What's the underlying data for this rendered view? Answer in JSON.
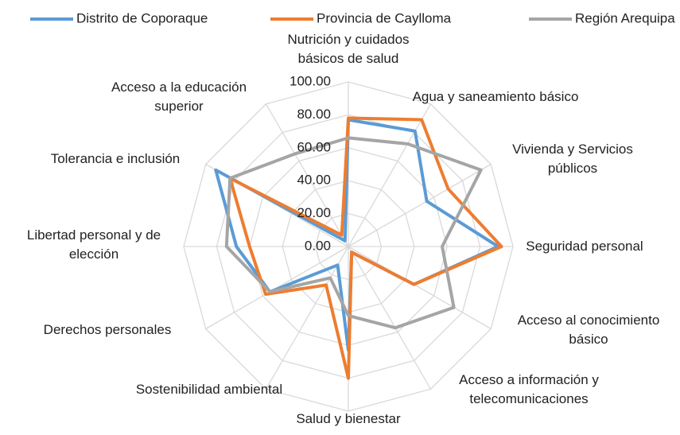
{
  "chart_data": {
    "type": "radar",
    "categories": [
      "Nutrición y cuidados básicos de salud",
      "Agua y saneamiento básico",
      "Vivienda y Servicios públicos",
      "Seguridad personal",
      "Acceso al conocimiento básico",
      "Acceso a información y telecomunicaciones",
      "Salud y bienestar",
      "Sostenibilidad ambiental",
      "Derechos personales",
      "Libertad personal y de elección",
      "Tolerancia e inclusión",
      "Acceso a la educación superior"
    ],
    "series": [
      {
        "name": "Distrito de Coporaque",
        "color": "#5b9bd5",
        "values": [
          77,
          81,
          55,
          91,
          46,
          4,
          63,
          13,
          55,
          68,
          93,
          4
        ]
      },
      {
        "name": "Provincia de Caylloma",
        "color": "#ed7d31",
        "values": [
          78,
          89,
          70,
          93,
          46,
          4,
          80,
          27,
          58,
          60,
          83,
          8
        ]
      },
      {
        "name": "Región Arequipa",
        "color": "#a5a5a5",
        "values": [
          66,
          72,
          93,
          57,
          74,
          57,
          42,
          22,
          55,
          74,
          83,
          65
        ]
      }
    ],
    "ylim": [
      0,
      100
    ],
    "yticks": [
      {
        "value": 0,
        "label": "0.00"
      },
      {
        "value": 20,
        "label": "20.00"
      },
      {
        "value": 40,
        "label": "40.00"
      },
      {
        "value": 60,
        "label": "60.00"
      },
      {
        "value": 80,
        "label": "80.00"
      },
      {
        "value": 100,
        "label": "100.00"
      }
    ],
    "grid": true,
    "legend": "top"
  }
}
